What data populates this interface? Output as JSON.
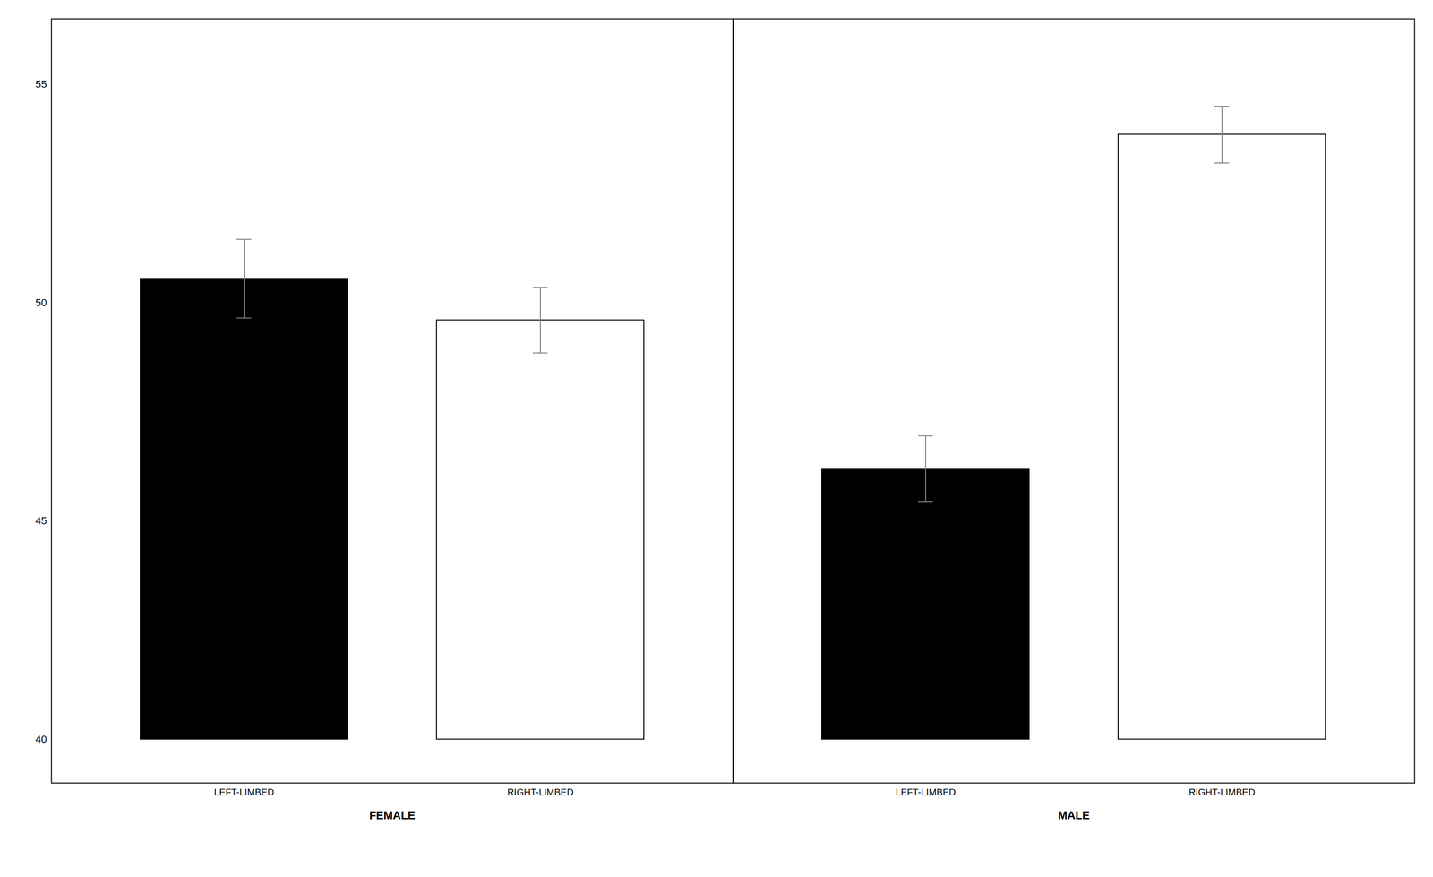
{
  "chart_data": {
    "type": "bar",
    "categories": [
      "FEMALE",
      "MALE"
    ],
    "series": [
      {
        "name": "LEFT-LIMBED",
        "color": "#000000",
        "values": [
          50.55,
          46.2
        ],
        "errors": [
          0.9,
          0.75
        ]
      },
      {
        "name": "RIGHT-LIMBED",
        "color": "#ffffff",
        "values": [
          49.6,
          53.85
        ],
        "errors": [
          0.75,
          0.65
        ]
      }
    ],
    "baseline": 40,
    "ylim": [
      39.0,
      56.5
    ],
    "yticks": [
      40,
      45,
      50,
      55
    ],
    "grid": false
  }
}
